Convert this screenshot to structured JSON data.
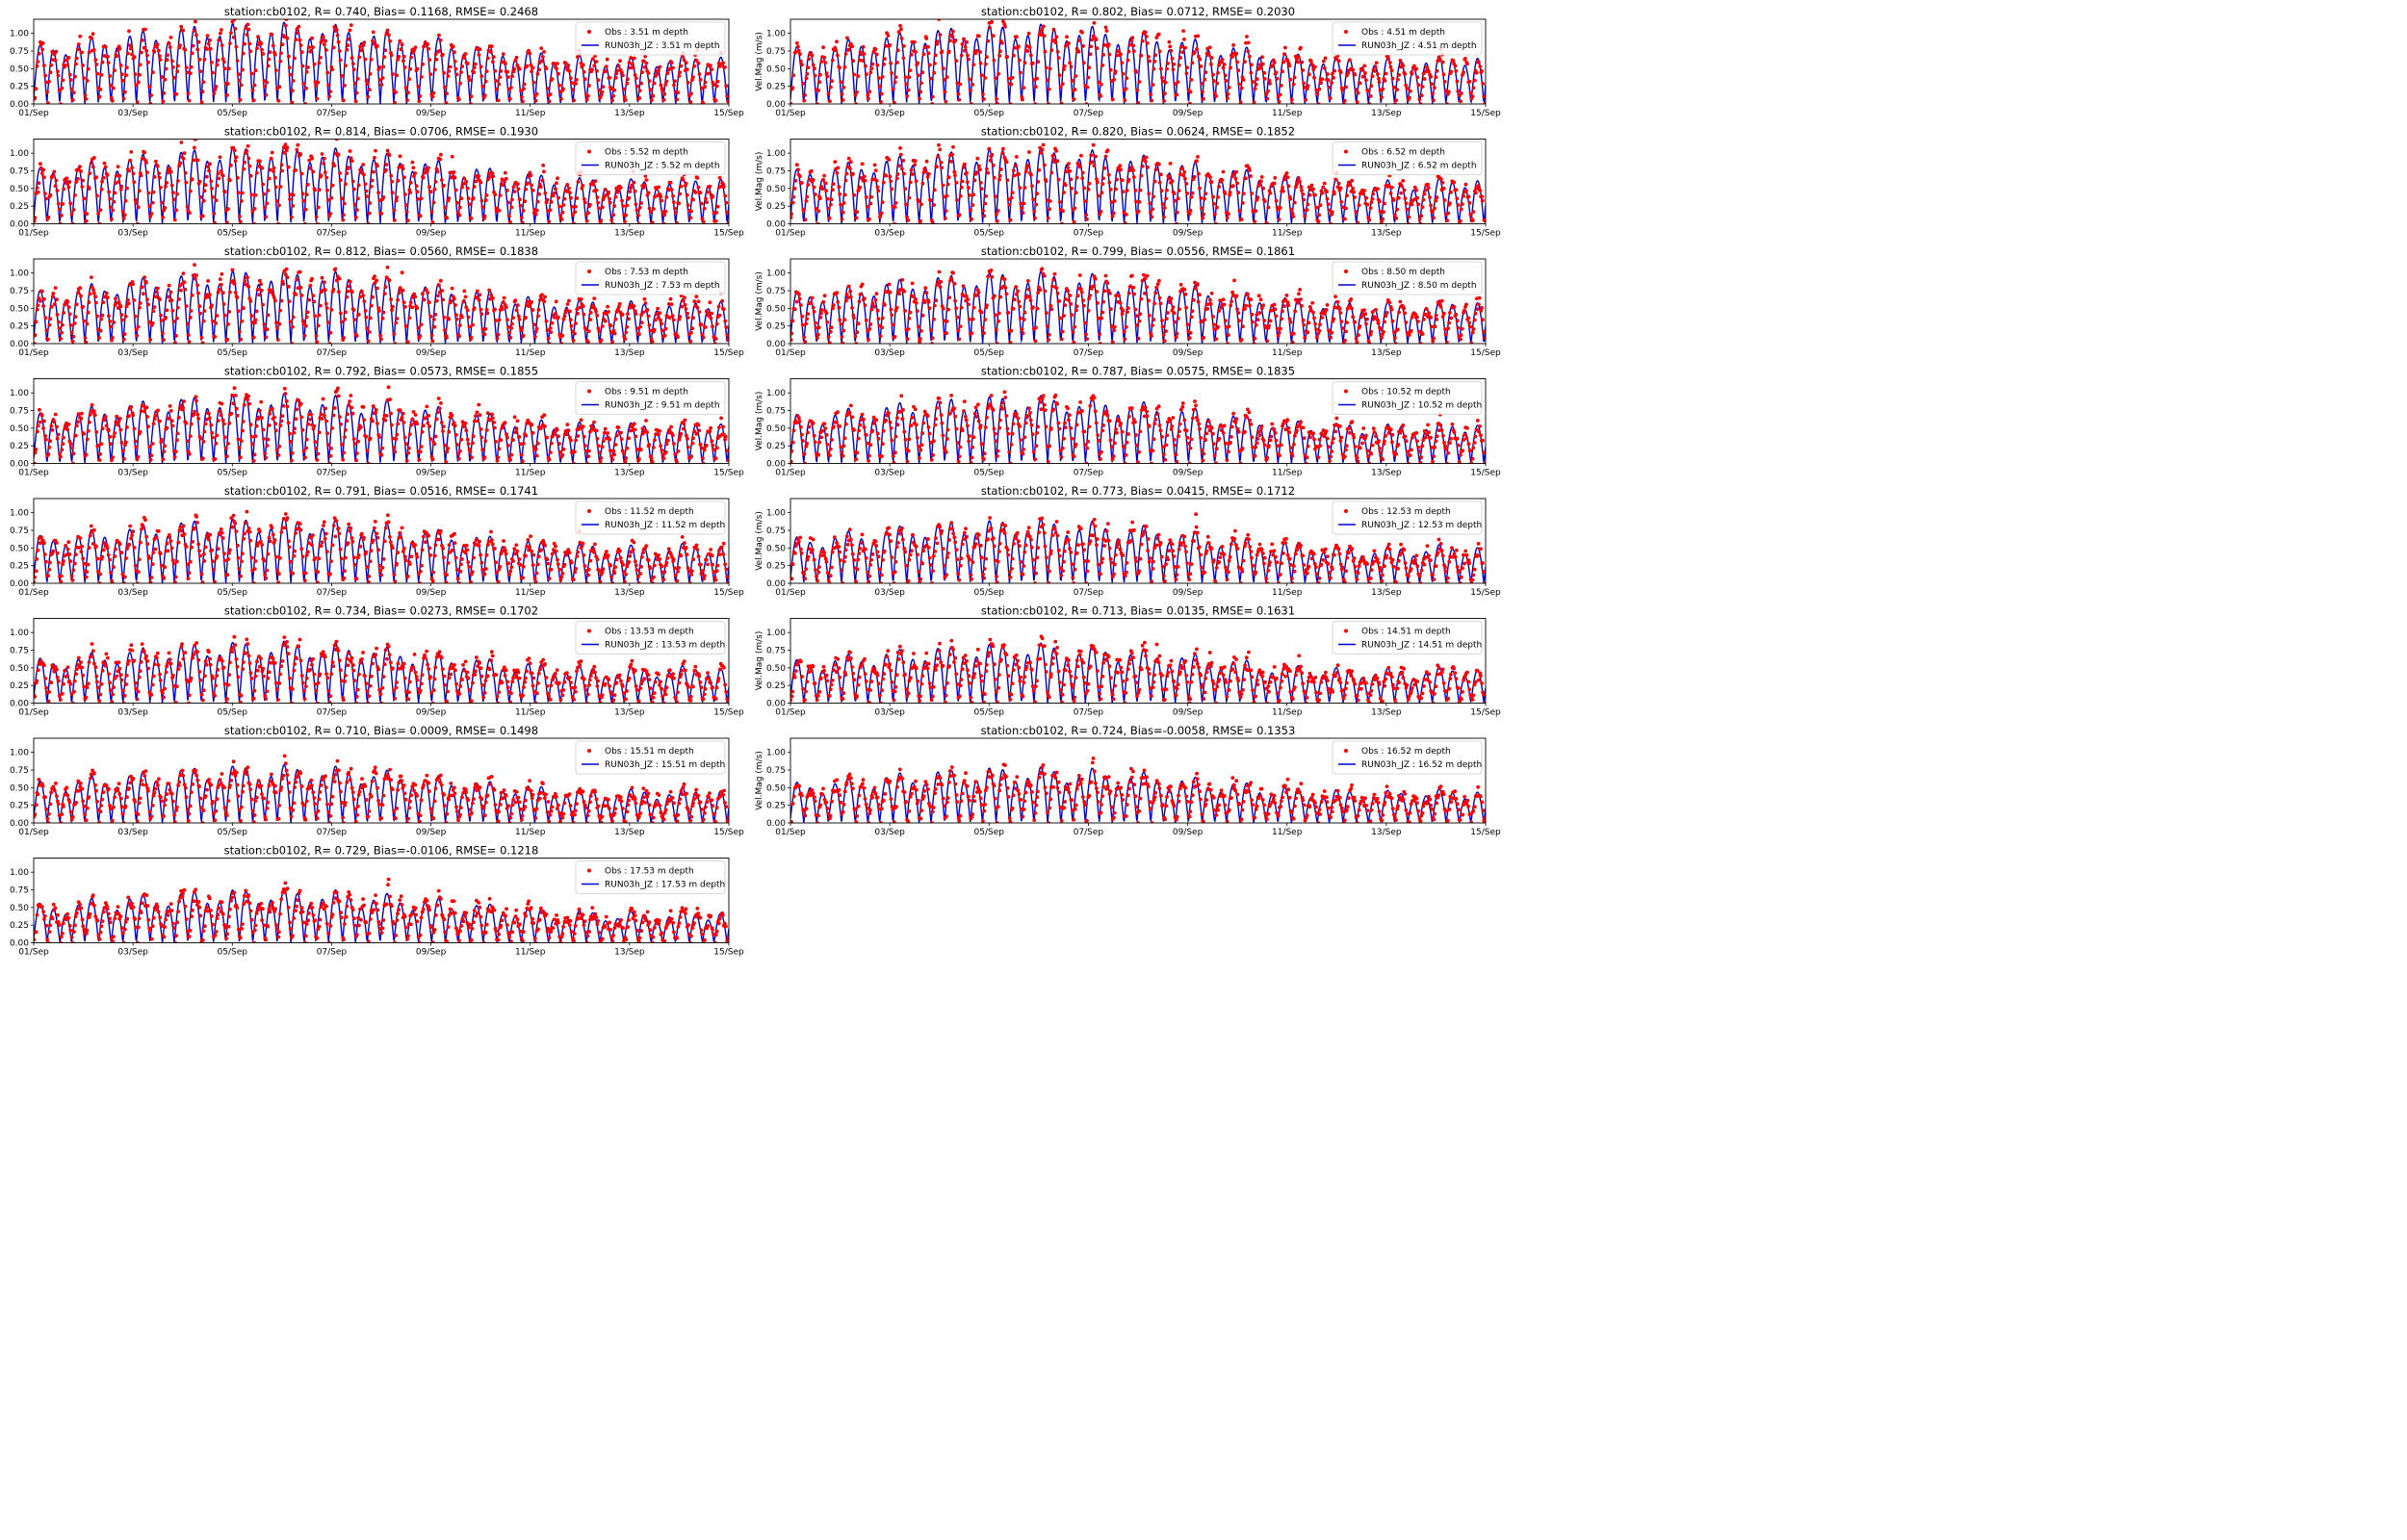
{
  "figure": {
    "background": "#ffffff"
  },
  "style": {
    "obs_color": "#ff0000",
    "model_color": "#0000cd"
  },
  "chart_data": [
    {
      "type": "scatter+line",
      "title": "station:cb0102, R= 0.740, Bias= 0.1168, RMSE= 0.2468",
      "ylabel": "",
      "xticklabels": [
        "01/Sep",
        "03/Sep",
        "05/Sep",
        "07/Sep",
        "09/Sep",
        "11/Sep",
        "13/Sep",
        "15/Sep"
      ],
      "yticks": [
        0.0,
        0.25,
        0.5,
        0.75,
        1.0
      ],
      "yticklabels": [
        "0.00",
        "0.25",
        "0.50",
        "0.75",
        "1.00"
      ],
      "xlim": [
        "2017-09-01",
        "2017-09-15"
      ],
      "ylim": [
        0,
        1.2
      ],
      "series": [
        {
          "name": "Obs : 3.51 m depth",
          "kind": "scatter",
          "color": "#ff0000"
        },
        {
          "name": "RUN03h_JZ : 3.51 m depth",
          "kind": "line",
          "color": "#0000cd"
        }
      ],
      "legend": "top-right"
    },
    {
      "type": "scatter+line",
      "title": "station:cb0102, R= 0.802, Bias= 0.0712, RMSE= 0.2030",
      "ylabel": "Vel.Mag (m/s)",
      "xticklabels": [
        "01/Sep",
        "03/Sep",
        "05/Sep",
        "07/Sep",
        "09/Sep",
        "11/Sep",
        "13/Sep",
        "15/Sep"
      ],
      "yticks": [
        0.0,
        0.25,
        0.5,
        0.75,
        1.0
      ],
      "yticklabels": [
        "0.00",
        "0.25",
        "0.50",
        "0.75",
        "1.00"
      ],
      "xlim": [
        "2017-09-01",
        "2017-09-15"
      ],
      "ylim": [
        0,
        1.2
      ],
      "series": [
        {
          "name": "Obs : 4.51 m depth",
          "kind": "scatter",
          "color": "#ff0000"
        },
        {
          "name": "RUN03h_JZ : 4.51 m depth",
          "kind": "line",
          "color": "#0000cd"
        }
      ],
      "legend": "top-right"
    },
    {
      "type": "scatter+line",
      "title": "station:cb0102, R= 0.814, Bias= 0.0706, RMSE= 0.1930",
      "ylabel": "",
      "xticklabels": [
        "01/Sep",
        "03/Sep",
        "05/Sep",
        "07/Sep",
        "09/Sep",
        "11/Sep",
        "13/Sep",
        "15/Sep"
      ],
      "yticks": [
        0.0,
        0.25,
        0.5,
        0.75,
        1.0
      ],
      "yticklabels": [
        "0.00",
        "0.25",
        "0.50",
        "0.75",
        "1.00"
      ],
      "xlim": [
        "2017-09-01",
        "2017-09-15"
      ],
      "ylim": [
        0,
        1.2
      ],
      "series": [
        {
          "name": "Obs : 5.52 m depth",
          "kind": "scatter",
          "color": "#ff0000"
        },
        {
          "name": "RUN03h_JZ : 5.52 m depth",
          "kind": "line",
          "color": "#0000cd"
        }
      ],
      "legend": "top-right"
    },
    {
      "type": "scatter+line",
      "title": "station:cb0102, R= 0.820, Bias= 0.0624, RMSE= 0.1852",
      "ylabel": "Vel.Mag (m/s)",
      "xticklabels": [
        "01/Sep",
        "03/Sep",
        "05/Sep",
        "07/Sep",
        "09/Sep",
        "11/Sep",
        "13/Sep",
        "15/Sep"
      ],
      "yticks": [
        0.0,
        0.25,
        0.5,
        0.75,
        1.0
      ],
      "yticklabels": [
        "0.00",
        "0.25",
        "0.50",
        "0.75",
        "1.00"
      ],
      "xlim": [
        "2017-09-01",
        "2017-09-15"
      ],
      "ylim": [
        0,
        1.2
      ],
      "series": [
        {
          "name": "Obs : 6.52 m depth",
          "kind": "scatter",
          "color": "#ff0000"
        },
        {
          "name": "RUN03h_JZ : 6.52 m depth",
          "kind": "line",
          "color": "#0000cd"
        }
      ],
      "legend": "top-right"
    },
    {
      "type": "scatter+line",
      "title": "station:cb0102, R= 0.812, Bias= 0.0560, RMSE= 0.1838",
      "ylabel": "",
      "xticklabels": [
        "01/Sep",
        "03/Sep",
        "05/Sep",
        "07/Sep",
        "09/Sep",
        "11/Sep",
        "13/Sep",
        "15/Sep"
      ],
      "yticks": [
        0.0,
        0.25,
        0.5,
        0.75,
        1.0
      ],
      "yticklabels": [
        "0.00",
        "0.25",
        "0.50",
        "0.75",
        "1.00"
      ],
      "xlim": [
        "2017-09-01",
        "2017-09-15"
      ],
      "ylim": [
        0,
        1.2
      ],
      "series": [
        {
          "name": "Obs : 7.53 m depth",
          "kind": "scatter",
          "color": "#ff0000"
        },
        {
          "name": "RUN03h_JZ : 7.53 m depth",
          "kind": "line",
          "color": "#0000cd"
        }
      ],
      "legend": "top-right"
    },
    {
      "type": "scatter+line",
      "title": "station:cb0102, R= 0.799, Bias= 0.0556, RMSE= 0.1861",
      "ylabel": "Vel.Mag (m/s)",
      "xticklabels": [
        "01/Sep",
        "03/Sep",
        "05/Sep",
        "07/Sep",
        "09/Sep",
        "11/Sep",
        "13/Sep",
        "15/Sep"
      ],
      "yticks": [
        0.0,
        0.25,
        0.5,
        0.75,
        1.0
      ],
      "yticklabels": [
        "0.00",
        "0.25",
        "0.50",
        "0.75",
        "1.00"
      ],
      "xlim": [
        "2017-09-01",
        "2017-09-15"
      ],
      "ylim": [
        0,
        1.2
      ],
      "series": [
        {
          "name": "Obs : 8.50 m depth",
          "kind": "scatter",
          "color": "#ff0000"
        },
        {
          "name": "RUN03h_JZ : 8.50 m depth",
          "kind": "line",
          "color": "#0000cd"
        }
      ],
      "legend": "top-right"
    },
    {
      "type": "scatter+line",
      "title": "station:cb0102, R= 0.792, Bias= 0.0573, RMSE= 0.1855",
      "ylabel": "",
      "xticklabels": [
        "01/Sep",
        "03/Sep",
        "05/Sep",
        "07/Sep",
        "09/Sep",
        "11/Sep",
        "13/Sep",
        "15/Sep"
      ],
      "yticks": [
        0.0,
        0.25,
        0.5,
        0.75,
        1.0
      ],
      "yticklabels": [
        "0.00",
        "0.25",
        "0.50",
        "0.75",
        "1.00"
      ],
      "xlim": [
        "2017-09-01",
        "2017-09-15"
      ],
      "ylim": [
        0,
        1.2
      ],
      "series": [
        {
          "name": "Obs : 9.51 m depth",
          "kind": "scatter",
          "color": "#ff0000"
        },
        {
          "name": "RUN03h_JZ : 9.51 m depth",
          "kind": "line",
          "color": "#0000cd"
        }
      ],
      "legend": "top-right"
    },
    {
      "type": "scatter+line",
      "title": "station:cb0102, R= 0.787, Bias= 0.0575, RMSE= 0.1835",
      "ylabel": "Vel.Mag (m/s)",
      "xticklabels": [
        "01/Sep",
        "03/Sep",
        "05/Sep",
        "07/Sep",
        "09/Sep",
        "11/Sep",
        "13/Sep",
        "15/Sep"
      ],
      "yticks": [
        0.0,
        0.25,
        0.5,
        0.75,
        1.0
      ],
      "yticklabels": [
        "0.00",
        "0.25",
        "0.50",
        "0.75",
        "1.00"
      ],
      "xlim": [
        "2017-09-01",
        "2017-09-15"
      ],
      "ylim": [
        0,
        1.2
      ],
      "series": [
        {
          "name": "Obs : 10.52 m depth",
          "kind": "scatter",
          "color": "#ff0000"
        },
        {
          "name": "RUN03h_JZ : 10.52 m depth",
          "kind": "line",
          "color": "#0000cd"
        }
      ],
      "legend": "top-right"
    },
    {
      "type": "scatter+line",
      "title": "station:cb0102, R= 0.791, Bias= 0.0516, RMSE= 0.1741",
      "ylabel": "",
      "xticklabels": [
        "01/Sep",
        "03/Sep",
        "05/Sep",
        "07/Sep",
        "09/Sep",
        "11/Sep",
        "13/Sep",
        "15/Sep"
      ],
      "yticks": [
        0.0,
        0.25,
        0.5,
        0.75,
        1.0
      ],
      "yticklabels": [
        "0.00",
        "0.25",
        "0.50",
        "0.75",
        "1.00"
      ],
      "xlim": [
        "2017-09-01",
        "2017-09-15"
      ],
      "ylim": [
        0,
        1.2
      ],
      "series": [
        {
          "name": "Obs : 11.52 m depth",
          "kind": "scatter",
          "color": "#ff0000"
        },
        {
          "name": "RUN03h_JZ : 11.52 m depth",
          "kind": "line",
          "color": "#0000cd"
        }
      ],
      "legend": "top-right"
    },
    {
      "type": "scatter+line",
      "title": "station:cb0102, R= 0.773, Bias= 0.0415, RMSE= 0.1712",
      "ylabel": "Vel.Mag (m/s)",
      "xticklabels": [
        "01/Sep",
        "03/Sep",
        "05/Sep",
        "07/Sep",
        "09/Sep",
        "11/Sep",
        "13/Sep",
        "15/Sep"
      ],
      "yticks": [
        0.0,
        0.25,
        0.5,
        0.75,
        1.0
      ],
      "yticklabels": [
        "0.00",
        "0.25",
        "0.50",
        "0.75",
        "1.00"
      ],
      "xlim": [
        "2017-09-01",
        "2017-09-15"
      ],
      "ylim": [
        0,
        1.2
      ],
      "series": [
        {
          "name": "Obs : 12.53 m depth",
          "kind": "scatter",
          "color": "#ff0000"
        },
        {
          "name": "RUN03h_JZ : 12.53 m depth",
          "kind": "line",
          "color": "#0000cd"
        }
      ],
      "legend": "top-right"
    },
    {
      "type": "scatter+line",
      "title": "station:cb0102, R= 0.734, Bias= 0.0273, RMSE= 0.1702",
      "ylabel": "",
      "xticklabels": [
        "01/Sep",
        "03/Sep",
        "05/Sep",
        "07/Sep",
        "09/Sep",
        "11/Sep",
        "13/Sep",
        "15/Sep"
      ],
      "yticks": [
        0.0,
        0.25,
        0.5,
        0.75,
        1.0
      ],
      "yticklabels": [
        "0.00",
        "0.25",
        "0.50",
        "0.75",
        "1.00"
      ],
      "xlim": [
        "2017-09-01",
        "2017-09-15"
      ],
      "ylim": [
        0,
        1.2
      ],
      "series": [
        {
          "name": "Obs : 13.53 m depth",
          "kind": "scatter",
          "color": "#ff0000"
        },
        {
          "name": "RUN03h_JZ : 13.53 m depth",
          "kind": "line",
          "color": "#0000cd"
        }
      ],
      "legend": "top-right"
    },
    {
      "type": "scatter+line",
      "title": "station:cb0102, R= 0.713, Bias= 0.0135, RMSE= 0.1631",
      "ylabel": "Vel.Mag (m/s)",
      "xticklabels": [
        "01/Sep",
        "03/Sep",
        "05/Sep",
        "07/Sep",
        "09/Sep",
        "11/Sep",
        "13/Sep",
        "15/Sep"
      ],
      "yticks": [
        0.0,
        0.25,
        0.5,
        0.75,
        1.0
      ],
      "yticklabels": [
        "0.00",
        "0.25",
        "0.50",
        "0.75",
        "1.00"
      ],
      "xlim": [
        "2017-09-01",
        "2017-09-15"
      ],
      "ylim": [
        0,
        1.2
      ],
      "series": [
        {
          "name": "Obs : 14.51 m depth",
          "kind": "scatter",
          "color": "#ff0000"
        },
        {
          "name": "RUN03h_JZ : 14.51 m depth",
          "kind": "line",
          "color": "#0000cd"
        }
      ],
      "legend": "top-right"
    },
    {
      "type": "scatter+line",
      "title": "station:cb0102, R= 0.710, Bias= 0.0009, RMSE= 0.1498",
      "ylabel": "",
      "xticklabels": [
        "01/Sep",
        "03/Sep",
        "05/Sep",
        "07/Sep",
        "09/Sep",
        "11/Sep",
        "13/Sep",
        "15/Sep"
      ],
      "yticks": [
        0.0,
        0.25,
        0.5,
        0.75,
        1.0
      ],
      "yticklabels": [
        "0.00",
        "0.25",
        "0.50",
        "0.75",
        "1.00"
      ],
      "xlim": [
        "2017-09-01",
        "2017-09-15"
      ],
      "ylim": [
        0,
        1.2
      ],
      "series": [
        {
          "name": "Obs : 15.51 m depth",
          "kind": "scatter",
          "color": "#ff0000"
        },
        {
          "name": "RUN03h_JZ : 15.51 m depth",
          "kind": "line",
          "color": "#0000cd"
        }
      ],
      "legend": "top-right"
    },
    {
      "type": "scatter+line",
      "title": "station:cb0102, R= 0.724, Bias=-0.0058, RMSE= 0.1353",
      "ylabel": "Vel.Mag (m/s)",
      "xticklabels": [
        "01/Sep",
        "03/Sep",
        "05/Sep",
        "07/Sep",
        "09/Sep",
        "11/Sep",
        "13/Sep",
        "15/Sep"
      ],
      "yticks": [
        0.0,
        0.25,
        0.5,
        0.75,
        1.0
      ],
      "yticklabels": [
        "0.00",
        "0.25",
        "0.50",
        "0.75",
        "1.00"
      ],
      "xlim": [
        "2017-09-01",
        "2017-09-15"
      ],
      "ylim": [
        0,
        1.2
      ],
      "series": [
        {
          "name": "Obs : 16.52 m depth",
          "kind": "scatter",
          "color": "#ff0000"
        },
        {
          "name": "RUN03h_JZ : 16.52 m depth",
          "kind": "line",
          "color": "#0000cd"
        }
      ],
      "legend": "top-right"
    },
    {
      "type": "scatter+line",
      "title": "station:cb0102, R= 0.729, Bias=-0.0106, RMSE= 0.1218",
      "ylabel": "",
      "xticklabels": [
        "01/Sep",
        "03/Sep",
        "05/Sep",
        "07/Sep",
        "09/Sep",
        "11/Sep",
        "13/Sep",
        "15/Sep"
      ],
      "yticks": [
        0.0,
        0.25,
        0.5,
        0.75,
        1.0
      ],
      "yticklabels": [
        "0.00",
        "0.25",
        "0.50",
        "0.75",
        "1.00"
      ],
      "xlim": [
        "2017-09-01",
        "2017-09-15"
      ],
      "ylim": [
        0,
        1.2
      ],
      "series": [
        {
          "name": "Obs : 17.53 m depth",
          "kind": "scatter",
          "color": "#ff0000"
        },
        {
          "name": "RUN03h_JZ : 17.53 m depth",
          "kind": "line",
          "color": "#0000cd"
        }
      ],
      "legend": "top-right"
    }
  ]
}
